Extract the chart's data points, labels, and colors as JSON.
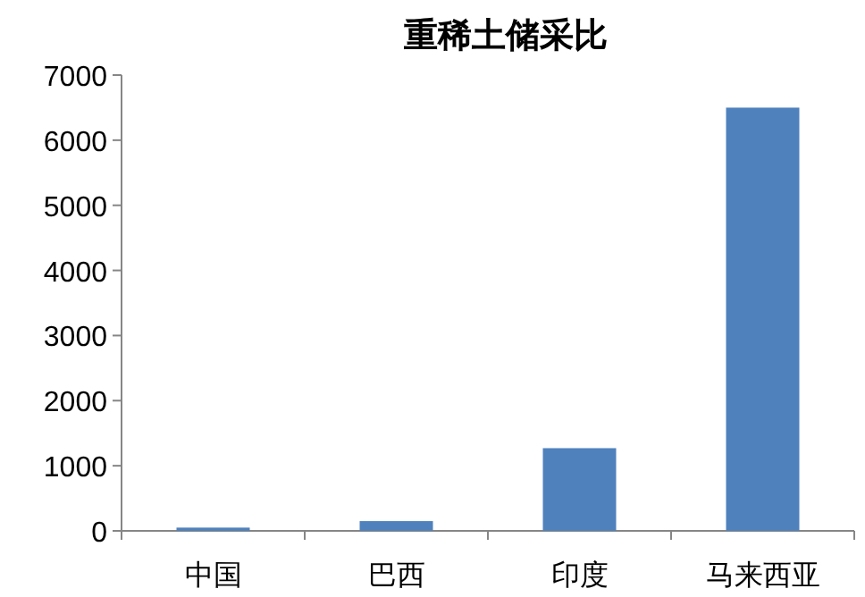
{
  "chart_data": {
    "type": "bar",
    "title": "重稀土储采比",
    "categories": [
      "中国",
      "巴西",
      "印度",
      "马来西亚"
    ],
    "values": [
      50,
      150,
      1270,
      6500
    ],
    "color": "#4f81bd",
    "ylim": [
      0,
      7000
    ],
    "yticks": [
      0,
      1000,
      2000,
      3000,
      4000,
      5000,
      6000,
      7000
    ],
    "grid": false
  }
}
